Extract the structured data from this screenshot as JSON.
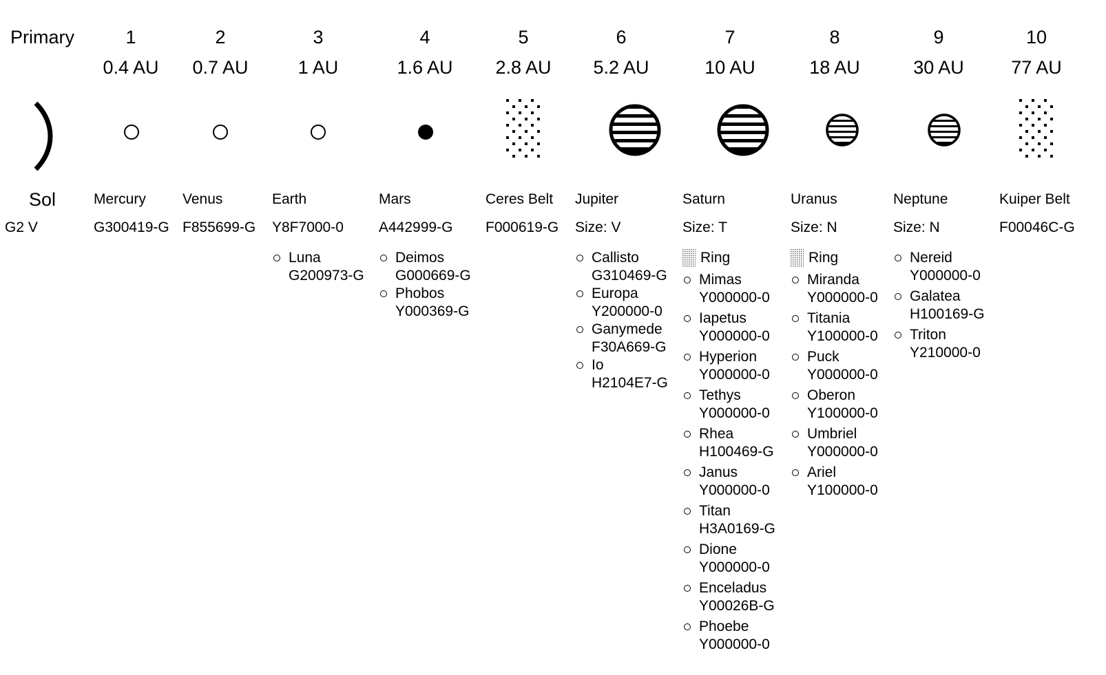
{
  "header": {
    "primary_label": "Primary"
  },
  "star": {
    "name": "Sol",
    "class": "G2 V"
  },
  "orbits": [
    {
      "number": "1",
      "distance": "0.4 AU",
      "name": "Mercury",
      "code": "G300419-G",
      "icon": "small-rock-icon",
      "satellites": []
    },
    {
      "number": "2",
      "distance": "0.7 AU",
      "name": "Venus",
      "code": "F855699-G",
      "icon": "small-rock-icon",
      "satellites": []
    },
    {
      "number": "3",
      "distance": "1 AU",
      "name": "Earth",
      "code": "Y8F7000-0",
      "icon": "small-rock-icon",
      "satellites": [
        {
          "name": "Luna",
          "code": "G200973-G"
        }
      ]
    },
    {
      "number": "4",
      "distance": "1.6 AU",
      "name": "Mars",
      "code": "A442999-G",
      "icon": "filled-planet-icon",
      "satellites": [
        {
          "name": "Deimos",
          "code": "G000669-G"
        },
        {
          "name": "Phobos",
          "code": "Y000369-G"
        }
      ]
    },
    {
      "number": "5",
      "distance": "2.8 AU",
      "name": "Ceres Belt",
      "code": "F000619-G",
      "icon": "asteroid-belt-icon",
      "satellites": []
    },
    {
      "number": "6",
      "distance": "5.2 AU",
      "name": "Jupiter",
      "code": "Size: V",
      "icon": "gas-giant-icon",
      "satellites": [
        {
          "name": "Callisto",
          "code": "G310469-G"
        },
        {
          "name": "Europa",
          "code": "Y200000-0"
        },
        {
          "name": "Ganymede",
          "code": "F30A669-G"
        },
        {
          "name": "Io",
          "code": "H2104E7-G"
        }
      ]
    },
    {
      "number": "7",
      "distance": "10 AU",
      "name": "Saturn",
      "code": "Size: T",
      "icon": "gas-giant-icon",
      "ring": "Ring",
      "satellites": [
        {
          "name": "Mimas",
          "code": "Y000000-0"
        },
        {
          "name": "Iapetus",
          "code": "Y000000-0"
        },
        {
          "name": "Hyperion",
          "code": "Y000000-0"
        },
        {
          "name": "Tethys",
          "code": "Y000000-0"
        },
        {
          "name": "Rhea",
          "code": "H100469-G"
        },
        {
          "name": "Janus",
          "code": "Y000000-0"
        },
        {
          "name": "Titan",
          "code": "H3A0169-G"
        },
        {
          "name": "Dione",
          "code": "Y000000-0"
        },
        {
          "name": "Enceladus",
          "code": "Y00026B-G"
        },
        {
          "name": "Phoebe",
          "code": "Y000000-0"
        }
      ]
    },
    {
      "number": "8",
      "distance": "18 AU",
      "name": "Uranus",
      "code": "Size: N",
      "icon": "ice-giant-icon",
      "ring": "Ring",
      "satellites": [
        {
          "name": "Miranda",
          "code": "Y000000-0"
        },
        {
          "name": "Titania",
          "code": "Y100000-0"
        },
        {
          "name": "Puck",
          "code": "Y000000-0"
        },
        {
          "name": "Oberon",
          "code": "Y100000-0"
        },
        {
          "name": "Umbriel",
          "code": "Y000000-0"
        },
        {
          "name": "Ariel",
          "code": "Y100000-0"
        }
      ]
    },
    {
      "number": "9",
      "distance": "30 AU",
      "name": "Neptune",
      "code": "Size: N",
      "icon": "ice-giant-icon",
      "satellites": [
        {
          "name": "Nereid",
          "code": "Y000000-0"
        },
        {
          "name": "Galatea",
          "code": "H100169-G"
        },
        {
          "name": "Triton",
          "code": "Y210000-0"
        }
      ]
    },
    {
      "number": "10",
      "distance": "77 AU",
      "name": "Kuiper Belt",
      "code": "F00046C-G",
      "icon": "asteroid-belt-icon",
      "satellites": []
    }
  ]
}
